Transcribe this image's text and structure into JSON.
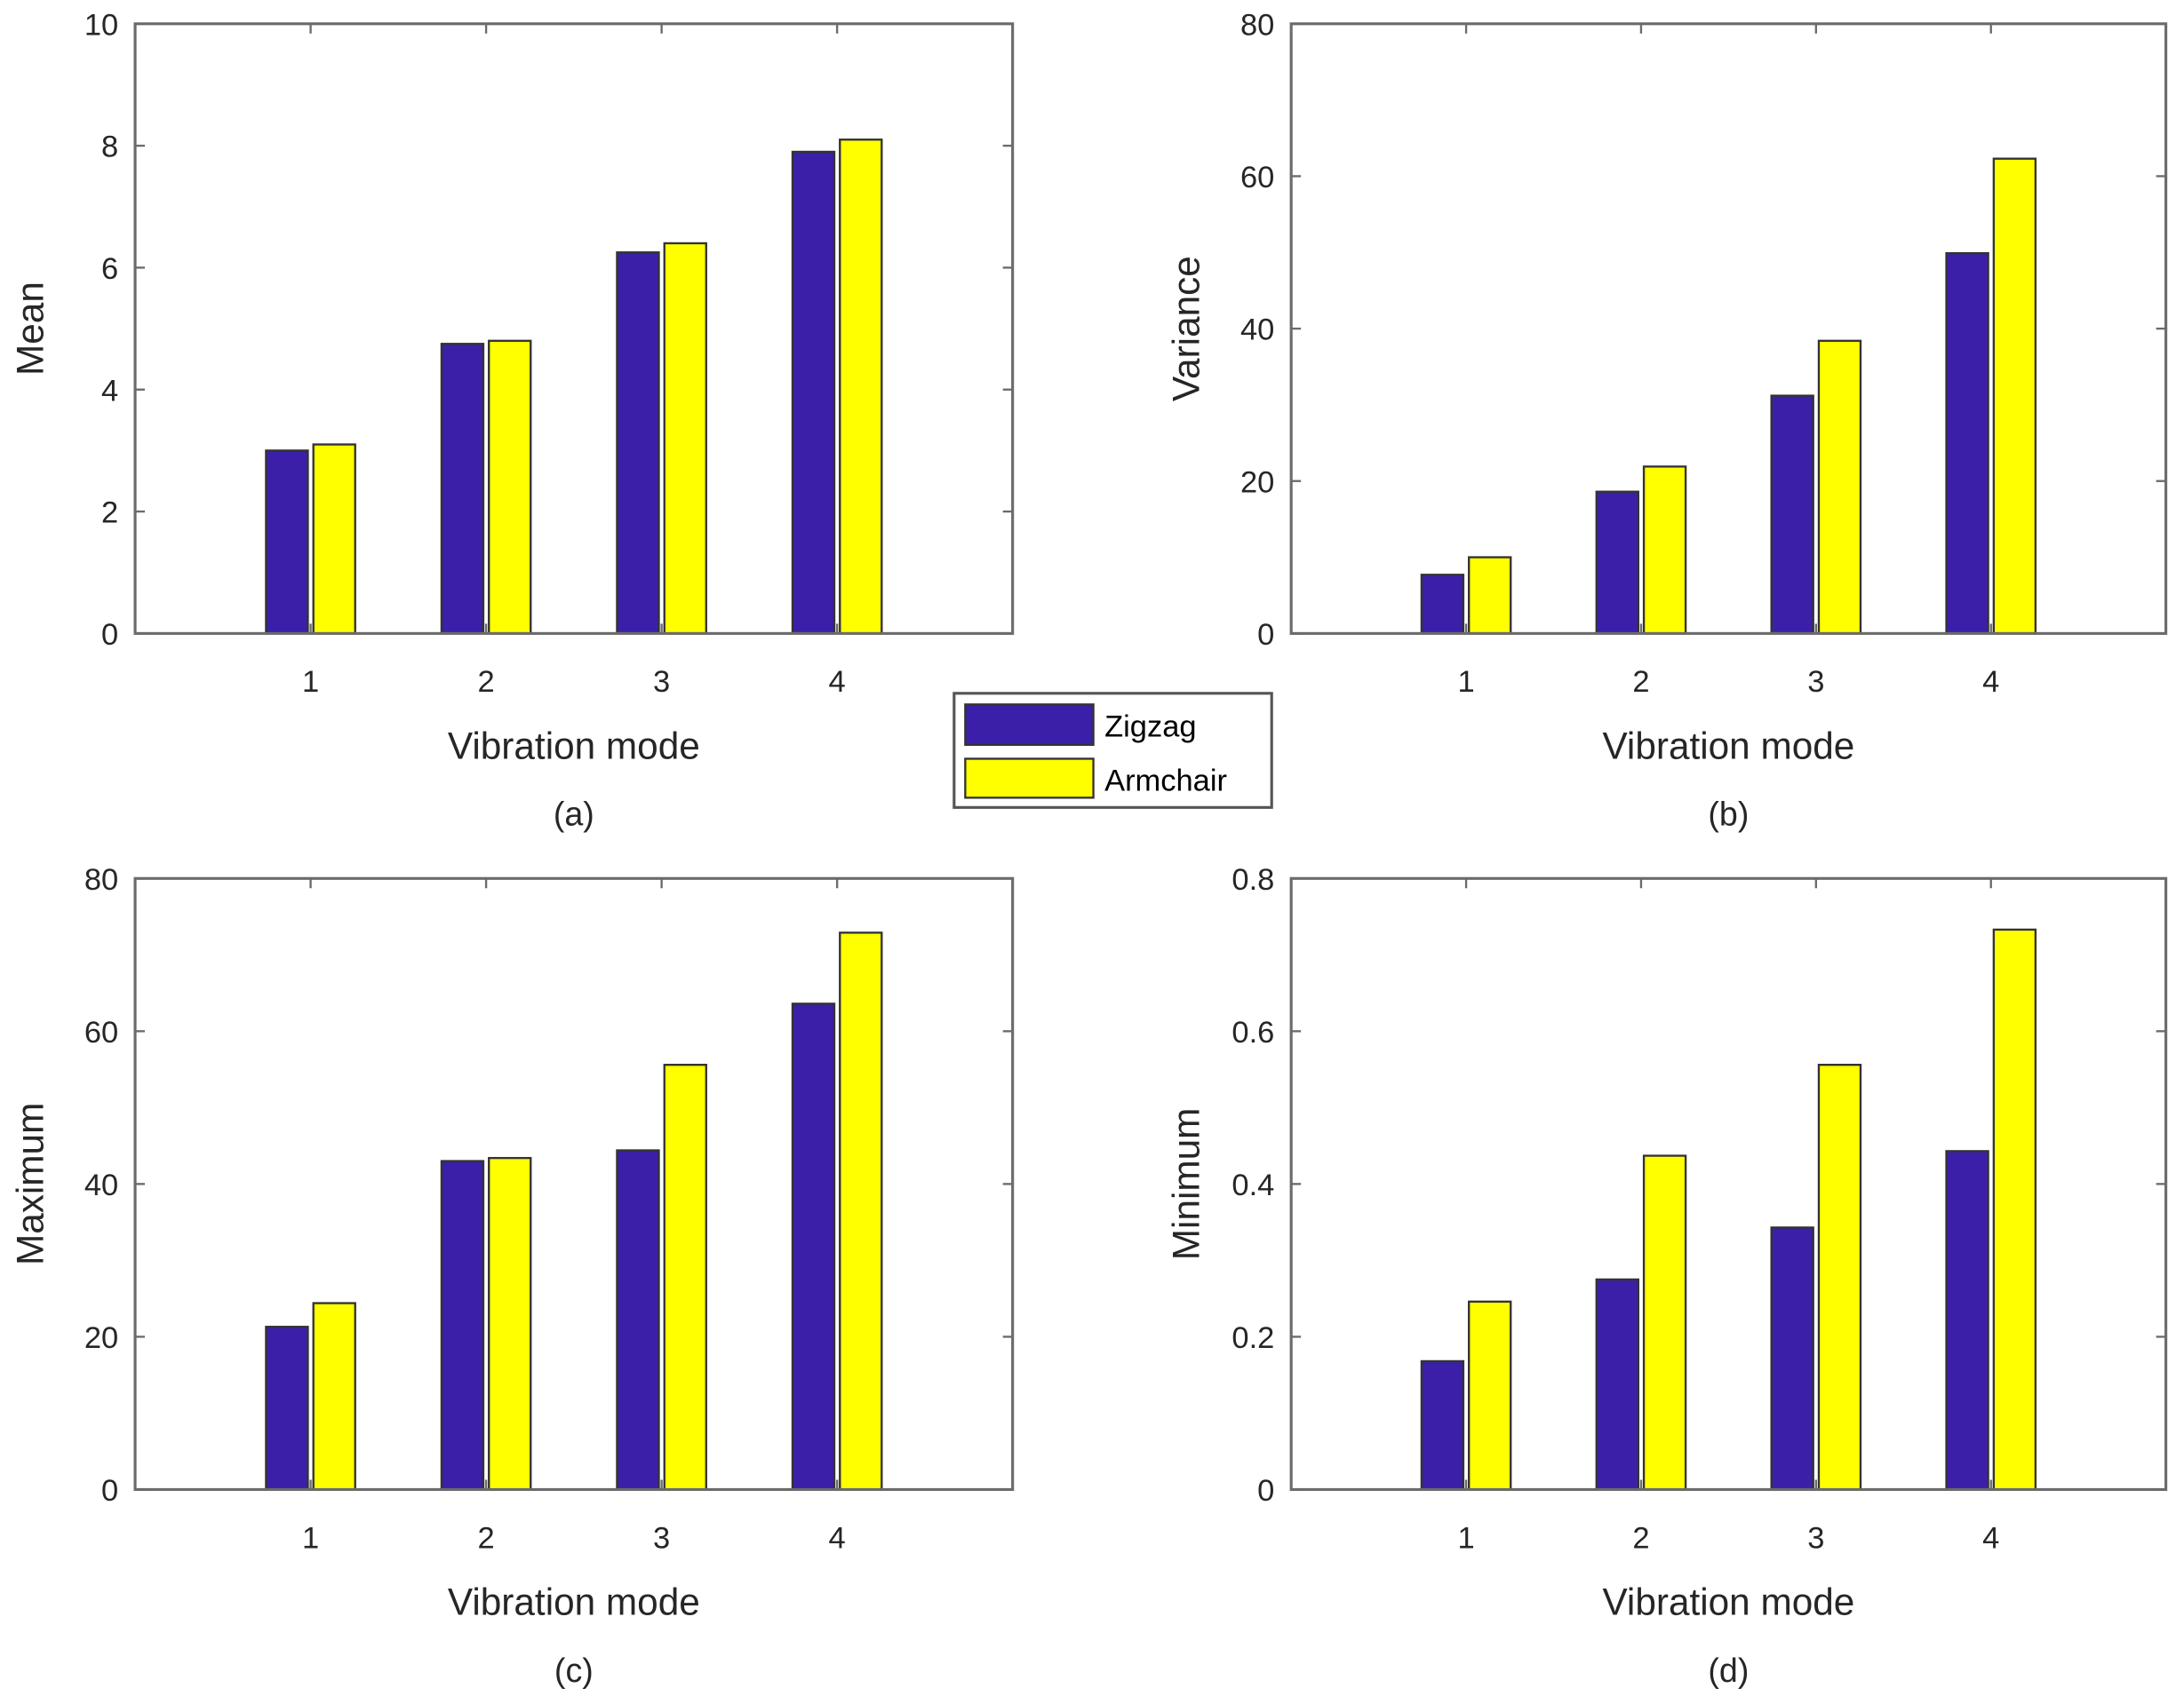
{
  "legend": {
    "entries": [
      "Zigzag",
      "Armchair"
    ],
    "colors": [
      "#3c1fa8",
      "#ffff00"
    ]
  },
  "chart_data": [
    {
      "type": "bar",
      "caption": "(a)",
      "xlabel": "Vibration mode",
      "ylabel": "Mean",
      "categories": [
        "1",
        "2",
        "3",
        "4"
      ],
      "xlim": [
        0,
        5
      ],
      "ylim": [
        0,
        10
      ],
      "yticks": [
        "0",
        "2",
        "4",
        "6",
        "8",
        "10"
      ],
      "ytick_values": [
        0,
        2,
        4,
        6,
        8,
        10
      ],
      "series": [
        {
          "name": "Zigzag",
          "values": [
            3.0,
            4.75,
            6.25,
            7.9
          ]
        },
        {
          "name": "Armchair",
          "values": [
            3.1,
            4.8,
            6.4,
            8.1
          ]
        }
      ]
    },
    {
      "type": "bar",
      "caption": "(b)",
      "xlabel": "Vibration mode",
      "ylabel": "Variance",
      "categories": [
        "1",
        "2",
        "3",
        "4"
      ],
      "xlim": [
        0,
        5
      ],
      "ylim": [
        0,
        80
      ],
      "yticks": [
        "0",
        "20",
        "40",
        "60",
        "80"
      ],
      "ytick_values": [
        0,
        20,
        40,
        60,
        80
      ],
      "series": [
        {
          "name": "Zigzag",
          "values": [
            7.7,
            18.6,
            31.2,
            49.9
          ]
        },
        {
          "name": "Armchair",
          "values": [
            10.0,
            21.9,
            38.4,
            62.3
          ]
        }
      ]
    },
    {
      "type": "bar",
      "caption": "(c)",
      "xlabel": "Vibration mode",
      "ylabel": "Maximum",
      "categories": [
        "1",
        "2",
        "3",
        "4"
      ],
      "xlim": [
        0,
        5
      ],
      "ylim": [
        0,
        80
      ],
      "yticks": [
        "0",
        "20",
        "40",
        "60",
        "80"
      ],
      "ytick_values": [
        0,
        20,
        40,
        60,
        80
      ],
      "series": [
        {
          "name": "Zigzag",
          "values": [
            21.3,
            43.0,
            44.4,
            63.6
          ]
        },
        {
          "name": "Armchair",
          "values": [
            24.4,
            43.4,
            55.6,
            72.9
          ]
        }
      ]
    },
    {
      "type": "bar",
      "caption": "(d)",
      "xlabel": "Vibration mode",
      "ylabel": "Minimum",
      "categories": [
        "1",
        "2",
        "3",
        "4"
      ],
      "xlim": [
        0,
        5
      ],
      "ylim": [
        0,
        0.8
      ],
      "yticks": [
        "0",
        "0.2",
        "0.4",
        "0.6",
        "0.8"
      ],
      "ytick_values": [
        0,
        0.2,
        0.4,
        0.6,
        0.8
      ],
      "series": [
        {
          "name": "Zigzag",
          "values": [
            0.168,
            0.275,
            0.343,
            0.443
          ]
        },
        {
          "name": "Armchair",
          "values": [
            0.246,
            0.437,
            0.556,
            0.733
          ]
        }
      ]
    }
  ]
}
